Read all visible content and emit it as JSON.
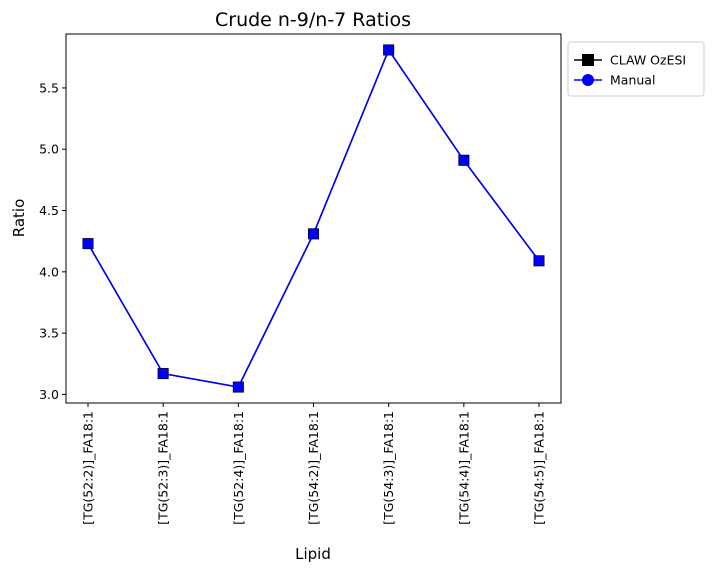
{
  "chart_data": {
    "type": "line",
    "title": "Crude n-9/n-7 Ratios",
    "xlabel": "Lipid",
    "ylabel": "Ratio",
    "categories": [
      "[TG(52:2)]_FA18:1",
      "[TG(52:3)]_FA18:1",
      "[TG(52:4)]_FA18:1",
      "[TG(54:2)]_FA18:1",
      "[TG(54:3)]_FA18:1",
      "[TG(54:4)]_FA18:1",
      "[TG(54:5)]_FA18:1"
    ],
    "ylim": [
      2.93,
      5.94
    ],
    "yticks": [
      3.0,
      3.5,
      4.0,
      4.5,
      5.0,
      5.5
    ],
    "ytick_labels": [
      "3.0",
      "3.5",
      "4.0",
      "4.5",
      "5.0",
      "5.5"
    ],
    "grid": false,
    "legend_position": "outside-upper-right",
    "series": [
      {
        "name": "CLAW OzESI",
        "color": "#000000",
        "marker": "square",
        "values": [
          4.23,
          3.17,
          3.06,
          4.31,
          5.81,
          4.91,
          4.09
        ]
      },
      {
        "name": "Manual",
        "color": "#0000ff",
        "marker": "circle",
        "values": [
          4.23,
          3.17,
          3.06,
          4.31,
          5.81,
          4.91,
          4.09
        ]
      }
    ]
  }
}
